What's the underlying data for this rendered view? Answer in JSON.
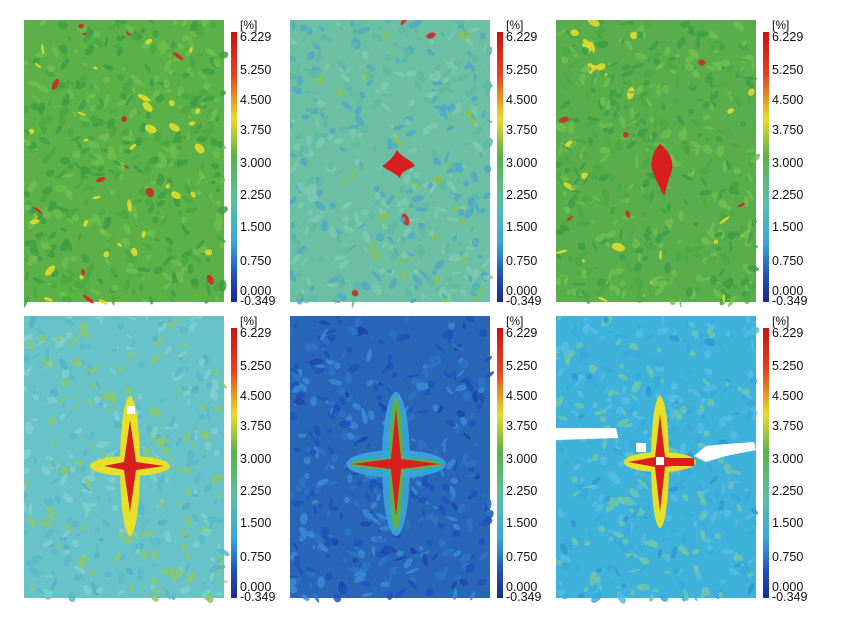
{
  "colorbar": {
    "unit": "[%]",
    "ticks": [
      "6.229",
      "5.250",
      "4.500",
      "3.750",
      "3.000",
      "2.250",
      "1.500",
      "0.750",
      "0.000",
      "-0.349"
    ],
    "min": -0.349,
    "max": 6.229
  },
  "panels": [
    {
      "id": "p1",
      "background": "#5bb048",
      "pattern": "scattered-hotspots",
      "crack": "none"
    },
    {
      "id": "p2",
      "background": "#6bbfa2",
      "pattern": "central-cluster",
      "crack": "small"
    },
    {
      "id": "p3",
      "background": "#59ad4c",
      "pattern": "central-cluster",
      "crack": "vertical"
    },
    {
      "id": "p4",
      "background": "#68c3c8",
      "pattern": "cross",
      "crack": "cross"
    },
    {
      "id": "p5",
      "background": "#2a66b8",
      "pattern": "cross",
      "crack": "cross"
    },
    {
      "id": "p6",
      "background": "#3fb2dc",
      "pattern": "cross-with-gap",
      "crack": "cross"
    }
  ],
  "colors": {
    "red": "#d81e1e",
    "yellow": "#e7df28",
    "green": "#5bb048",
    "cyan": "#47b8d6",
    "blue": "#1e3ea8",
    "dark_blue": "#1b2a8a",
    "gap": "#ffffff"
  }
}
